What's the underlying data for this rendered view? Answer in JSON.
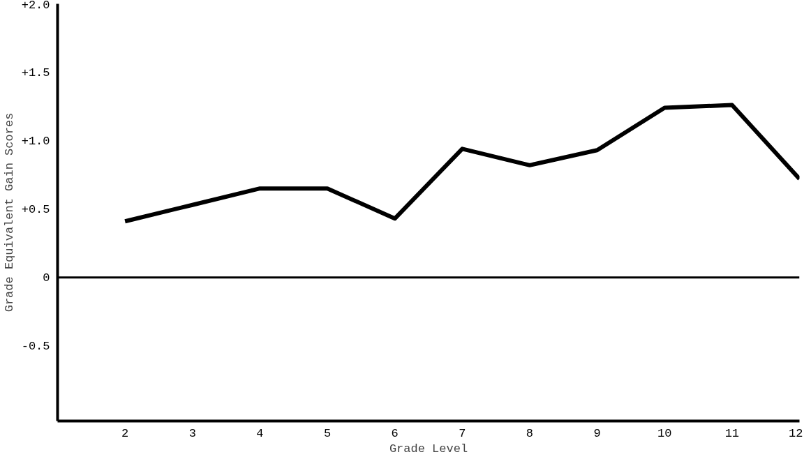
{
  "chart_data": {
    "type": "line",
    "xlabel": "Grade Level",
    "ylabel": "Grade Equivalent Gain Scores",
    "x": [
      2,
      3,
      4,
      5,
      6,
      7,
      8,
      9,
      10,
      11,
      12
    ],
    "values": [
      0.41,
      0.53,
      0.65,
      0.65,
      0.43,
      0.94,
      0.82,
      0.93,
      1.24,
      1.26,
      0.72
    ],
    "color": "#000000",
    "xlim": [
      1,
      12
    ],
    "xticks": [
      2,
      3,
      4,
      5,
      6,
      7,
      8,
      9,
      10,
      11,
      12
    ],
    "ylim": [
      -1.05,
      2.0
    ],
    "yticks": [
      {
        "value": 2.0,
        "label": "+2.0"
      },
      {
        "value": 1.5,
        "label": "+1.5"
      },
      {
        "value": 1.0,
        "label": "+1.0"
      },
      {
        "value": 0.5,
        "label": "+0.5"
      },
      0,
      {
        "value": -0.5,
        "label": "-0.5"
      }
    ],
    "ref_lines": [
      {
        "axis": "y",
        "value": 0,
        "label": null,
        "color": "#000000"
      }
    ],
    "grid": false,
    "marker": "none",
    "line_style": "solid"
  }
}
